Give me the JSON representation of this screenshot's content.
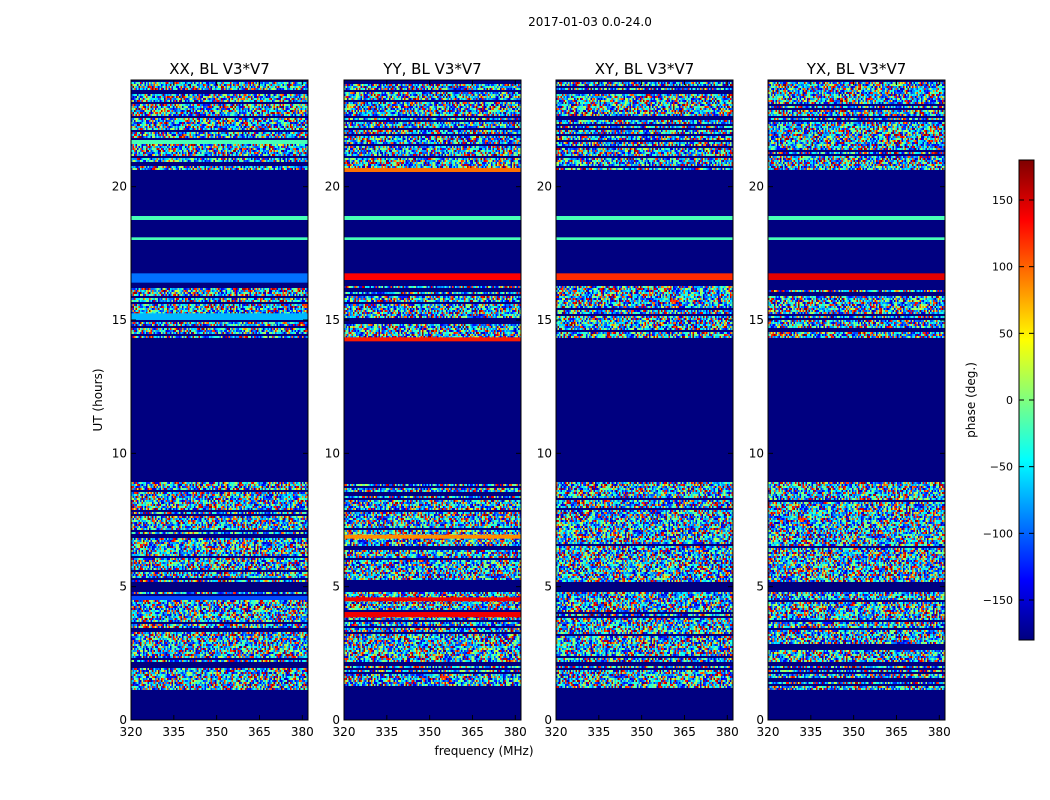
{
  "figure": {
    "suptitle": "2017-01-03 0.0-24.0",
    "xlabel": "frequency (MHz)",
    "ylabel": "UT (hours)"
  },
  "colorbar": {
    "label": "phase (deg.)",
    "range": [
      -180,
      180
    ],
    "ticks": [
      150,
      100,
      50,
      0,
      -50,
      -100,
      -150
    ],
    "tick_labels": [
      "150",
      "100",
      "50",
      "0",
      "−50",
      "−100",
      "−150"
    ],
    "colormap": "jet"
  },
  "chart_data": {
    "type": "heatmap",
    "colormap": "jet",
    "value_range": [
      -180,
      180
    ],
    "xlim": [
      320,
      382
    ],
    "ylim": [
      0,
      24
    ],
    "x_ticks": [
      320,
      335,
      350,
      365,
      380
    ],
    "x_tick_labels": [
      "320",
      "335",
      "350",
      "365",
      "380"
    ],
    "y_ticks": [
      0,
      5,
      10,
      15,
      20
    ],
    "y_tick_labels": [
      "0",
      "5",
      "10",
      "15",
      "20"
    ],
    "panels": [
      {
        "title": "XX, BL V3*V7",
        "noisy_bands": [
          [
            1.1,
            2.05
          ],
          [
            2.2,
            4.8
          ],
          [
            5.2,
            8.95
          ],
          [
            14.3,
            16.3
          ],
          [
            20.6,
            23.95
          ]
        ],
        "flat_bands": [
          {
            "y": [
              4.5,
              4.65
            ],
            "value": -110
          },
          {
            "y": [
              15.0,
              15.25
            ],
            "value": -70
          },
          {
            "y": [
              16.4,
              16.75
            ],
            "value": -95
          },
          {
            "y": [
              18.75,
              18.9
            ],
            "value": -20
          },
          {
            "y": [
              18.0,
              18.1
            ],
            "value": -20
          },
          {
            "y": [
              21.6,
              21.75
            ],
            "value": -20
          }
        ]
      },
      {
        "title": "YY, BL V3*V7",
        "noisy_bands": [
          [
            1.1,
            2.05
          ],
          [
            2.2,
            4.8
          ],
          [
            5.2,
            8.95
          ],
          [
            14.3,
            16.3
          ],
          [
            20.6,
            23.95
          ]
        ],
        "flat_bands": [
          {
            "y": [
              3.85,
              4.05
            ],
            "value": 140
          },
          {
            "y": [
              4.45,
              4.6
            ],
            "value": 140
          },
          {
            "y": [
              6.8,
              6.95
            ],
            "value": 85
          },
          {
            "y": [
              14.2,
              14.35
            ],
            "value": 125
          },
          {
            "y": [
              16.5,
              16.75
            ],
            "value": 135
          },
          {
            "y": [
              18.75,
              18.9
            ],
            "value": -20
          },
          {
            "y": [
              18.0,
              18.1
            ],
            "value": -20
          },
          {
            "y": [
              20.55,
              20.7
            ],
            "value": 95
          }
        ]
      },
      {
        "title": "XY, BL V3*V7",
        "noisy_bands": [
          [
            1.1,
            2.05
          ],
          [
            2.2,
            4.8
          ],
          [
            5.2,
            8.95
          ],
          [
            14.3,
            16.3
          ],
          [
            20.6,
            23.95
          ]
        ],
        "flat_bands": [
          {
            "y": [
              16.5,
              16.75
            ],
            "value": 120
          },
          {
            "y": [
              18.75,
              18.9
            ],
            "value": -20
          },
          {
            "y": [
              18.0,
              18.1
            ],
            "value": -20
          }
        ]
      },
      {
        "title": "YX, BL V3*V7",
        "noisy_bands": [
          [
            1.1,
            2.05
          ],
          [
            2.2,
            4.8
          ],
          [
            5.2,
            8.95
          ],
          [
            14.3,
            16.3
          ],
          [
            20.6,
            23.95
          ]
        ],
        "flat_bands": [
          {
            "y": [
              16.5,
              16.75
            ],
            "value": 145
          },
          {
            "y": [
              18.75,
              18.9
            ],
            "value": -20
          },
          {
            "y": [
              18.0,
              18.1
            ],
            "value": -20
          }
        ]
      }
    ],
    "background_value": -180
  }
}
